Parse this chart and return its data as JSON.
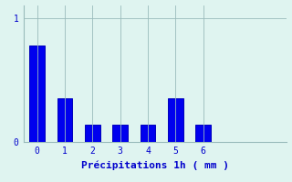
{
  "categories": [
    0,
    1,
    2,
    3,
    4,
    5,
    6
  ],
  "values": [
    0.78,
    0.35,
    0.14,
    0.14,
    0.14,
    0.35,
    0.14
  ],
  "bar_color": "#0000ee",
  "bar_edge_color": "#0000bb",
  "background_color": "#dff4f0",
  "axes_background": "#dff4f0",
  "xlabel": "Précipitations 1h ( mm )",
  "xlabel_color": "#0000cc",
  "xlabel_fontsize": 8,
  "tick_color": "#0000cc",
  "tick_fontsize": 7,
  "ylim": [
    0,
    1.1
  ],
  "yticks": [
    0,
    1
  ],
  "grid_color": "#99bbbb",
  "bar_width": 0.55,
  "xlim_left": -0.5,
  "xlim_right": 9.0
}
